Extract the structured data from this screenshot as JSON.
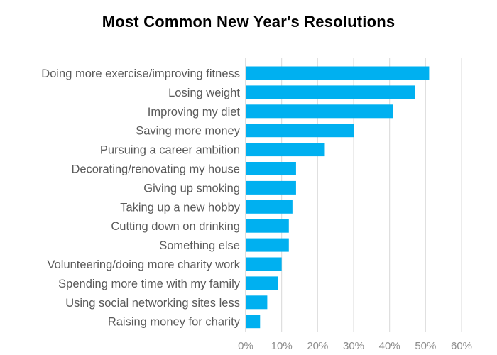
{
  "chart_data": {
    "type": "bar",
    "orientation": "horizontal",
    "title": "Most Common New Year's Resolutions",
    "xlabel": "",
    "ylabel": "",
    "categories": [
      "Doing more exercise/improving fitness",
      "Losing weight",
      "Improving my diet",
      "Saving more money",
      "Pursuing a career ambition",
      "Decorating/renovating my house",
      "Giving up smoking",
      "Taking up a new hobby",
      "Cutting down on drinking",
      "Something else",
      "Volunteering/doing more charity work",
      "Spending more time with my family",
      "Using social networking sites less",
      "Raising money for charity"
    ],
    "values": [
      51,
      47,
      41,
      30,
      22,
      14,
      14,
      13,
      12,
      12,
      10,
      9,
      6,
      4
    ],
    "xlim": [
      0,
      60
    ],
    "x_ticks": [
      0,
      10,
      20,
      30,
      40,
      50,
      60
    ],
    "x_tick_labels": [
      "0%",
      "10%",
      "20%",
      "30%",
      "40%",
      "50%",
      "60%"
    ],
    "grid": true,
    "legend": "none",
    "colors": {
      "bar": "#00b0f0",
      "grid": "#d9d9d9",
      "axis": "#bfbfbf",
      "category_label": "#5a5a5a",
      "tick_label": "#8c8c8c",
      "title": "#000000"
    }
  }
}
